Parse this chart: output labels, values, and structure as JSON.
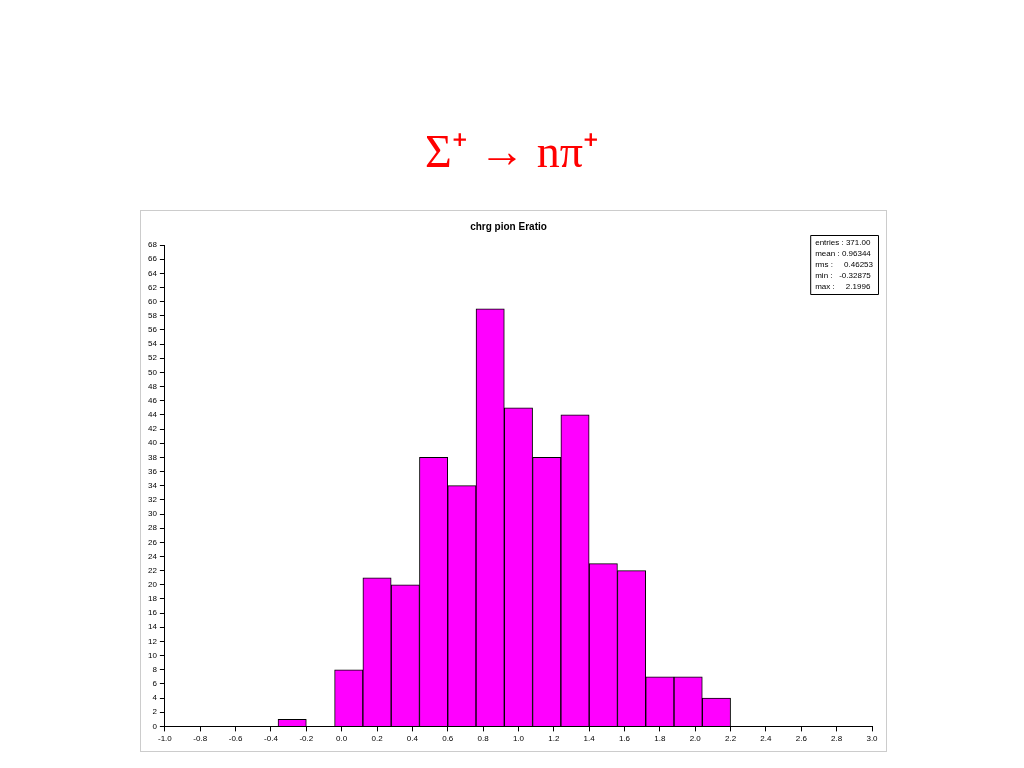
{
  "chart_data": {
    "type": "histogram",
    "title": "Σ⁺ → nπ⁺",
    "subtitle": "chrg pion Eratio",
    "bins": [
      -0.36,
      -0.2,
      -0.04,
      0.12,
      0.28,
      0.44,
      0.6,
      0.76,
      0.92,
      1.08,
      1.24,
      1.4,
      1.56,
      1.72,
      1.88,
      2.04,
      2.2
    ],
    "values": [
      1,
      0,
      8,
      21,
      20,
      38,
      34,
      59,
      45,
      38,
      44,
      23,
      22,
      7,
      7,
      4
    ],
    "color": "#ff00ff",
    "xlim": [
      -1.0,
      3.0
    ],
    "xticks": [
      {
        "value": -1.0,
        "label": "-1.0"
      },
      {
        "value": -0.8,
        "label": "-0.8"
      },
      {
        "value": -0.6,
        "label": "-0.6"
      },
      {
        "value": -0.4,
        "label": "-0.4"
      },
      {
        "value": -0.2,
        "label": "-0.2"
      },
      {
        "value": 0,
        "label": "0.0"
      },
      {
        "value": 0.2,
        "label": "0.2"
      },
      {
        "value": 0.4,
        "label": "0.4"
      },
      {
        "value": 0.6,
        "label": "0.6"
      },
      {
        "value": 0.8,
        "label": "0.8"
      },
      {
        "value": 1.0,
        "label": "1.0"
      },
      {
        "value": 1.2,
        "label": "1.2"
      },
      {
        "value": 1.4,
        "label": "1.4"
      },
      {
        "value": 1.6,
        "label": "1.6"
      },
      {
        "value": 1.8,
        "label": "1.8"
      },
      {
        "value": 2.0,
        "label": "2.0"
      },
      {
        "value": 2.2,
        "label": "2.2"
      },
      {
        "value": 2.4,
        "label": "2.4"
      },
      {
        "value": 2.6,
        "label": "2.6"
      },
      {
        "value": 2.8,
        "label": "2.8"
      },
      {
        "value": 3.0,
        "label": "3.0"
      }
    ],
    "ylim": [
      0,
      68
    ],
    "yticks": [
      0,
      2,
      4,
      6,
      8,
      10,
      12,
      14,
      16,
      18,
      20,
      22,
      24,
      26,
      28,
      30,
      32,
      34,
      36,
      38,
      40,
      42,
      44,
      46,
      48,
      50,
      52,
      54,
      56,
      58,
      60,
      62,
      64,
      66,
      68
    ],
    "grid": false,
    "legend": false,
    "annotations": [
      "entries : 371.00",
      "mean : 0.96344",
      "rms :     0.46253",
      "min :   -0.32875",
      "max :     2.1996"
    ]
  }
}
